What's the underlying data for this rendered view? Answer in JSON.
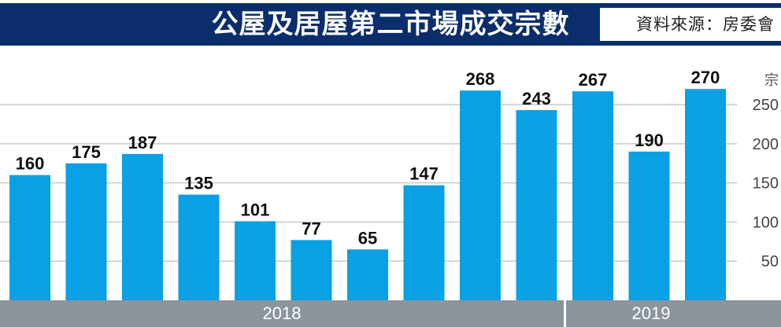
{
  "title": "公屋及居屋第二市場成交宗數",
  "source": "資料來源：房委會",
  "unit_label": "宗",
  "colors": {
    "header": "#0b2d6b",
    "bar": "#0aa0e4",
    "axis_band": "#8c949c",
    "grid": "#c9c9c9"
  },
  "chart_data": {
    "type": "bar",
    "categories": [
      "",
      "",
      "",
      "",
      "",
      "",
      "",
      "",
      "",
      "",
      "",
      "",
      ""
    ],
    "values": [
      160,
      175,
      187,
      135,
      101,
      77,
      65,
      147,
      268,
      243,
      267,
      190,
      270
    ],
    "ylim": [
      0,
      300
    ],
    "yticks": [
      50,
      100,
      150,
      200,
      250
    ],
    "ylabel": "宗",
    "grid": true,
    "group_labels": [
      "2018",
      "2019"
    ],
    "title": "公屋及居屋第二市場成交宗數"
  }
}
